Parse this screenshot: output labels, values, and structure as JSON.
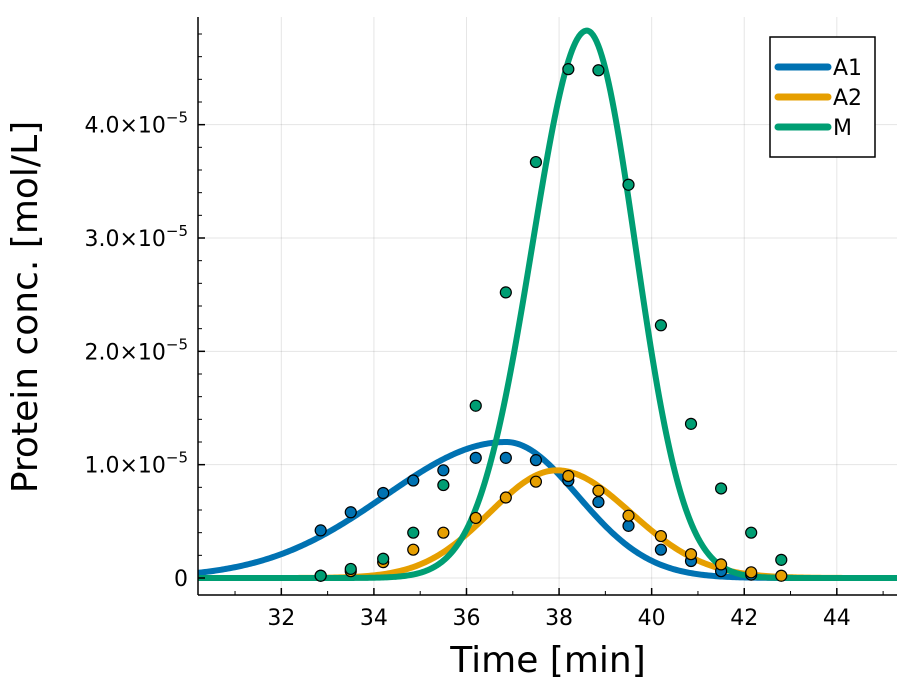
{
  "chart_data": {
    "type": "line",
    "xlabel": "Time [min]",
    "ylabel": "Protein conc. [mol/L]",
    "xlim": [
      30.2,
      45.3
    ],
    "ylim": [
      -1.5e-06,
      4.95e-05
    ],
    "x_ticks": [
      32,
      34,
      36,
      38,
      40,
      42,
      44
    ],
    "x_tick_labels": [
      "32",
      "34",
      "36",
      "38",
      "40",
      "42",
      "44"
    ],
    "y_ticks": [
      0,
      1e-05,
      2e-05,
      3e-05,
      4e-05
    ],
    "y_tick_labels": [
      {
        "mant": "0",
        "exp": ""
      },
      {
        "mant": "1.0×10",
        "exp": "−5"
      },
      {
        "mant": "2.0×10",
        "exp": "−5"
      },
      {
        "mant": "3.0×10",
        "exp": "−5"
      },
      {
        "mant": "4.0×10",
        "exp": "−5"
      }
    ],
    "grid": true,
    "legend_position": "top-right",
    "series": [
      {
        "name": "A1",
        "color": "#0072b2",
        "curve": {
          "amplitude": 1.2e-05,
          "center": 36.85,
          "sigma_left": 2.6,
          "sigma_right": 1.55
        },
        "points": [
          {
            "x": 32.85,
            "y": 4.2e-06
          },
          {
            "x": 33.5,
            "y": 5.8e-06
          },
          {
            "x": 34.2,
            "y": 7.5e-06
          },
          {
            "x": 34.85,
            "y": 8.6e-06
          },
          {
            "x": 35.5,
            "y": 9.5e-06
          },
          {
            "x": 36.2,
            "y": 1.06e-05
          },
          {
            "x": 36.85,
            "y": 1.06e-05
          },
          {
            "x": 37.5,
            "y": 1.04e-05
          },
          {
            "x": 38.2,
            "y": 8.6e-06
          },
          {
            "x": 38.85,
            "y": 6.7e-06
          },
          {
            "x": 39.5,
            "y": 4.6e-06
          },
          {
            "x": 40.2,
            "y": 2.5e-06
          },
          {
            "x": 40.85,
            "y": 1.5e-06
          },
          {
            "x": 41.5,
            "y": 6e-07
          },
          {
            "x": 42.15,
            "y": 3e-07
          }
        ]
      },
      {
        "name": "A2",
        "color": "#e69f00",
        "curve": {
          "amplitude": 9.5e-06,
          "center": 37.95,
          "sigma_left": 1.45,
          "sigma_right": 1.6
        },
        "points": [
          {
            "x": 32.85,
            "y": 2e-07
          },
          {
            "x": 33.5,
            "y": 6e-07
          },
          {
            "x": 34.2,
            "y": 1.4e-06
          },
          {
            "x": 34.85,
            "y": 2.5e-06
          },
          {
            "x": 35.5,
            "y": 4e-06
          },
          {
            "x": 36.2,
            "y": 5.3e-06
          },
          {
            "x": 36.85,
            "y": 7.1e-06
          },
          {
            "x": 37.5,
            "y": 8.5e-06
          },
          {
            "x": 38.2,
            "y": 9e-06
          },
          {
            "x": 38.85,
            "y": 7.7e-06
          },
          {
            "x": 39.5,
            "y": 5.5e-06
          },
          {
            "x": 40.2,
            "y": 3.7e-06
          },
          {
            "x": 40.85,
            "y": 2.1e-06
          },
          {
            "x": 41.5,
            "y": 1.2e-06
          },
          {
            "x": 42.15,
            "y": 5e-07
          },
          {
            "x": 42.8,
            "y": 2e-07
          }
        ]
      },
      {
        "name": "M",
        "color": "#009e73",
        "curve": {
          "amplitude": 4.83e-05,
          "center": 38.6,
          "sigma_left": 1.18,
          "sigma_right": 1.05
        },
        "points": [
          {
            "x": 32.85,
            "y": 2e-07
          },
          {
            "x": 33.5,
            "y": 8e-07
          },
          {
            "x": 34.2,
            "y": 1.7e-06
          },
          {
            "x": 34.85,
            "y": 4e-06
          },
          {
            "x": 35.5,
            "y": 8.2e-06
          },
          {
            "x": 36.2,
            "y": 1.52e-05
          },
          {
            "x": 36.85,
            "y": 2.52e-05
          },
          {
            "x": 37.5,
            "y": 3.67e-05
          },
          {
            "x": 38.2,
            "y": 4.49e-05
          },
          {
            "x": 38.85,
            "y": 4.48e-05
          },
          {
            "x": 39.5,
            "y": 3.47e-05
          },
          {
            "x": 40.2,
            "y": 2.23e-05
          },
          {
            "x": 40.85,
            "y": 1.36e-05
          },
          {
            "x": 41.5,
            "y": 7.9e-06
          },
          {
            "x": 42.15,
            "y": 4e-06
          },
          {
            "x": 42.8,
            "y": 1.6e-06
          }
        ]
      }
    ]
  }
}
